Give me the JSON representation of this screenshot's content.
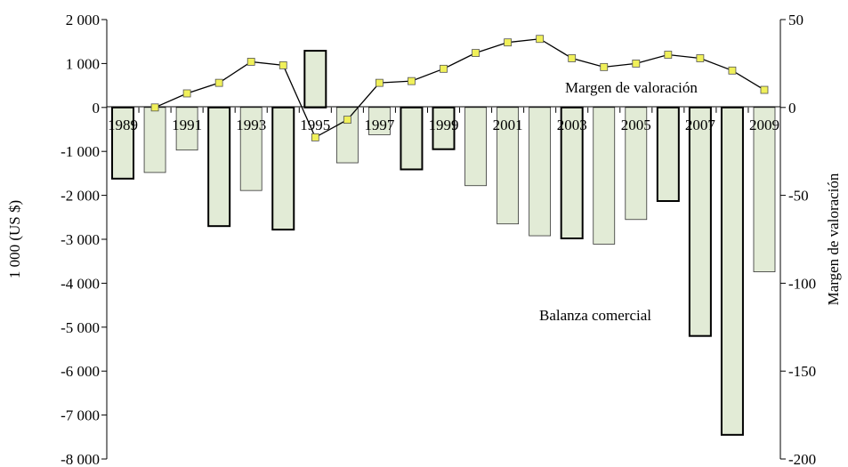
{
  "chart_data": {
    "type": "bar+line",
    "title": "",
    "xlabel": "",
    "ylabel_left": "1 000 (US $)",
    "ylabel_right": "Margen de valoración",
    "ylim_left": [
      -8000,
      2000
    ],
    "ylim_right": [
      -200,
      50
    ],
    "yticks_left": [
      "2 000",
      "1 000",
      "0",
      "-1 000",
      "-2 000",
      "-3 000",
      "-4 000",
      "-5 000",
      "-6 000",
      "-7 000",
      "-8 000"
    ],
    "yticks_left_values": [
      2000,
      1000,
      0,
      -1000,
      -2000,
      -3000,
      -4000,
      -5000,
      -6000,
      -7000,
      -8000
    ],
    "yticks_right": [
      "50",
      "0",
      "-50",
      "-100",
      "-150",
      "-200"
    ],
    "yticks_right_values": [
      50,
      0,
      -50,
      -100,
      -150,
      -200
    ],
    "xtick_labels": [
      "1989",
      "1991",
      "1993",
      "1995",
      "1997",
      "1999",
      "2001",
      "2003",
      "2005",
      "2007",
      "2009"
    ],
    "categories": [
      "1989",
      "1990",
      "1991",
      "1992",
      "1993",
      "1994",
      "1995",
      "1996",
      "1997",
      "1998",
      "1999",
      "2000",
      "2001",
      "2002",
      "2003",
      "2004",
      "2005",
      "2006",
      "2007",
      "2008",
      "2009"
    ],
    "series": [
      {
        "name": "Balanza comercial",
        "type": "bar",
        "axis": "left",
        "values": [
          -1620,
          -1480,
          -970,
          -2700,
          -1890,
          -2780,
          1290,
          -1260,
          -620,
          -1410,
          -950,
          -1780,
          -2650,
          -2920,
          -2980,
          -3110,
          -2550,
          -2130,
          -5200,
          -7450,
          -3740
        ],
        "emphasized": [
          true,
          false,
          false,
          true,
          false,
          true,
          true,
          false,
          false,
          true,
          true,
          false,
          false,
          false,
          true,
          false,
          false,
          true,
          true,
          true,
          false
        ]
      },
      {
        "name": "Margen de valoración",
        "type": "line",
        "axis": "right",
        "values": [
          null,
          0,
          8,
          14,
          26,
          24,
          -17,
          -7,
          14,
          15,
          22,
          31,
          37,
          39,
          28,
          23,
          25,
          30,
          28,
          21,
          10
        ]
      }
    ],
    "annotations": {
      "line_label": "Margen de valoración",
      "bar_label": "Balanza comercial"
    },
    "colors": {
      "bar_fill": "#e2ebd6",
      "bar_stroke_thin": "#333333",
      "bar_stroke_thick": "#000000",
      "marker_fill": "#f0f05a",
      "line": "#000000"
    },
    "grid": false,
    "legend": "none"
  }
}
